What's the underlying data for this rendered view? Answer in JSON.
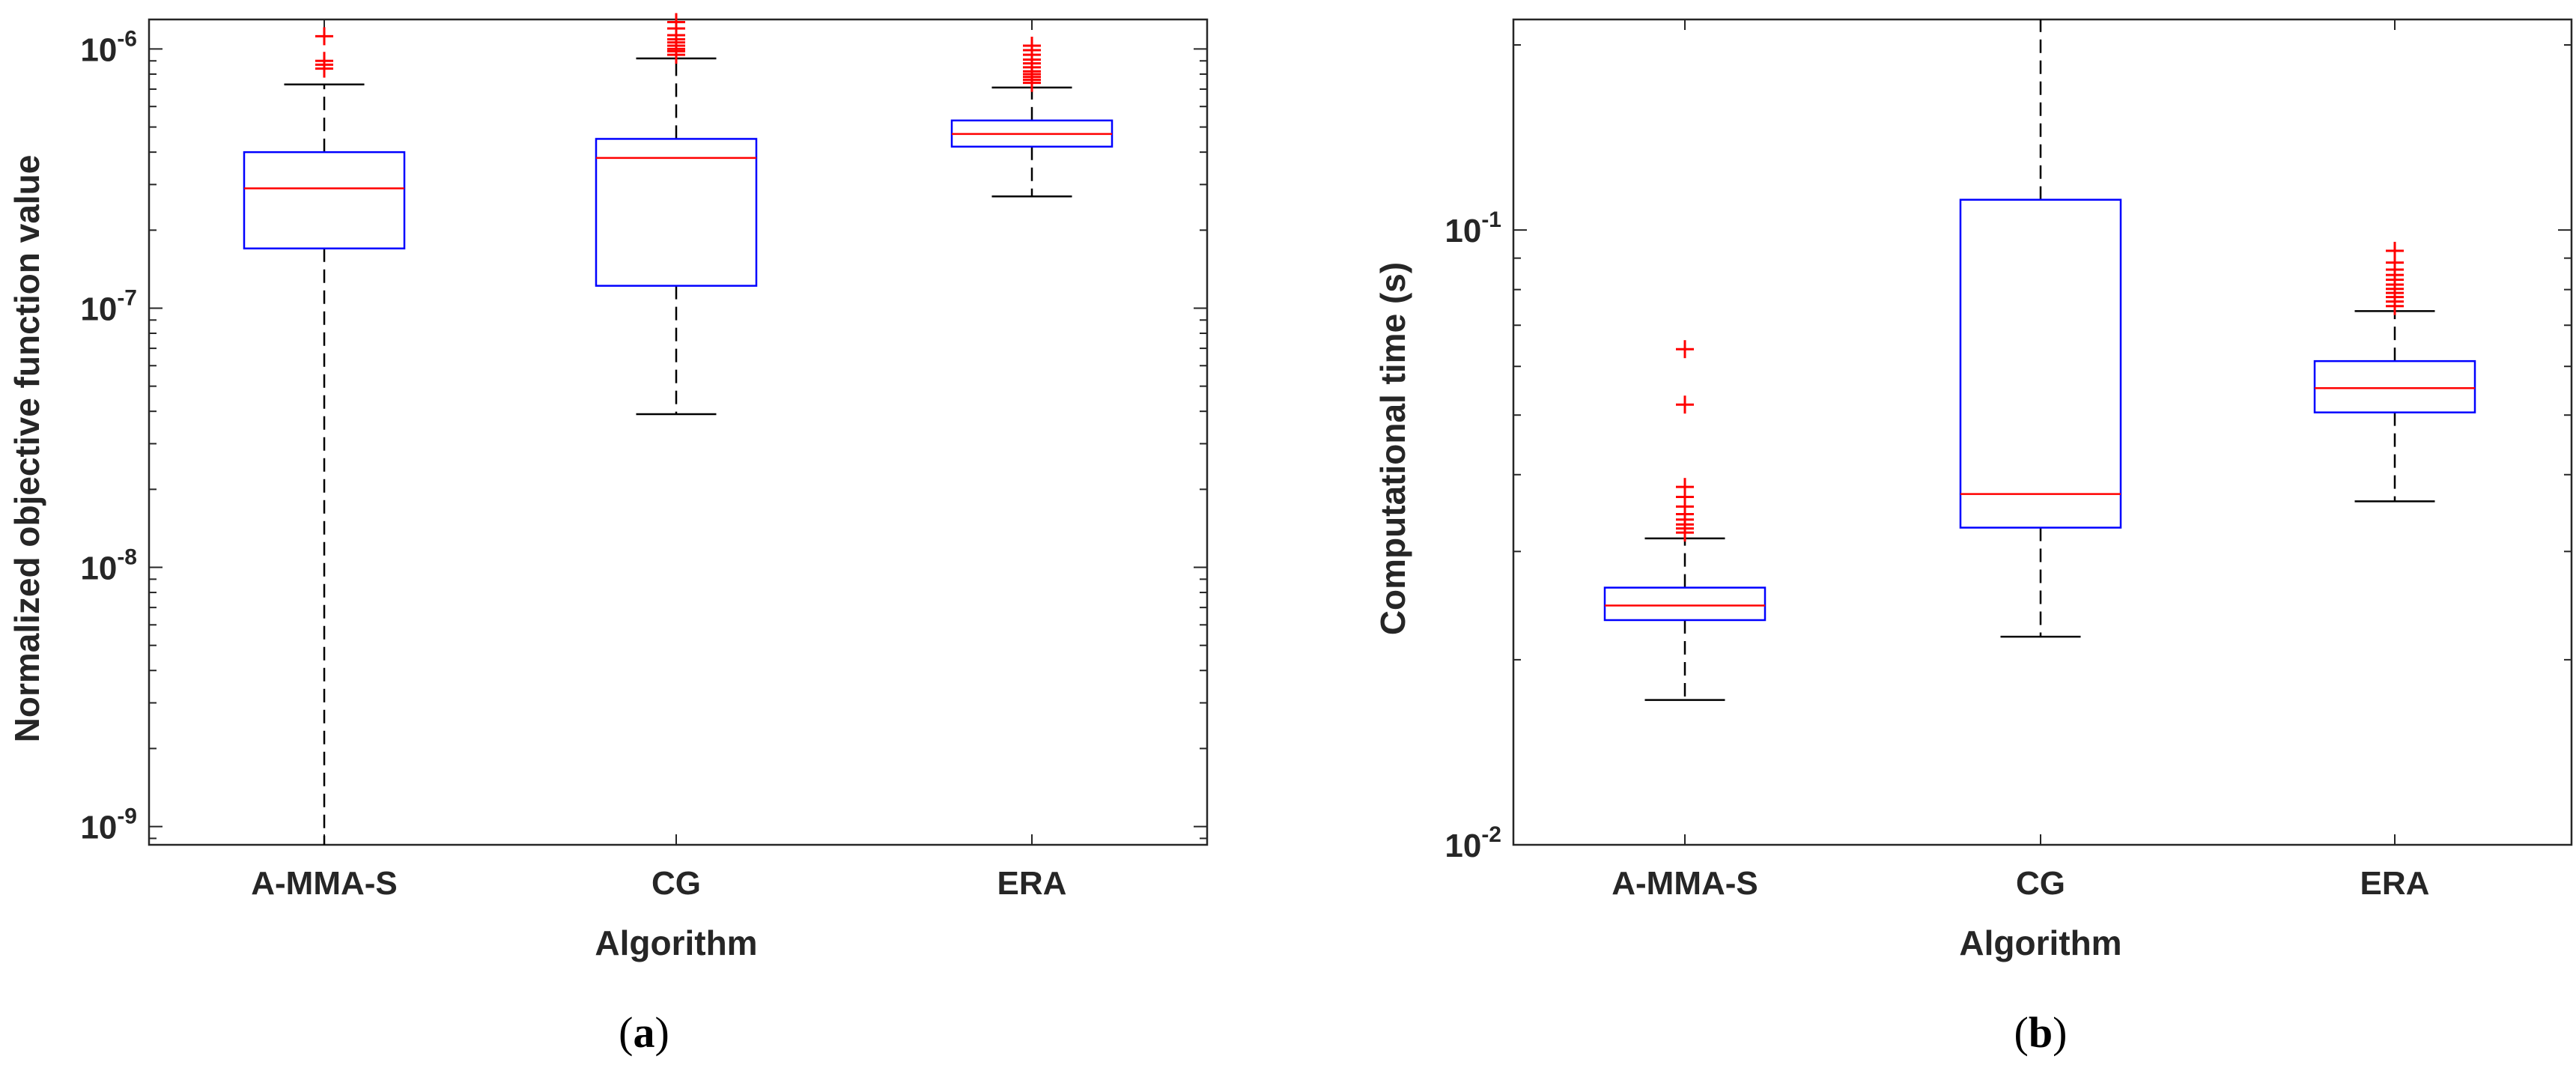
{
  "colors": {
    "box": "#0000ff",
    "median": "#ff0000",
    "whisker": "#000000",
    "outlier": "#ff0000",
    "axis": "#262626"
  },
  "chart_data": [
    {
      "type": "boxplot",
      "panel_label": "(a)",
      "caption": {
        "open": "(",
        "letter": "a",
        "close": ")"
      },
      "xlabel": "Algorithm",
      "ylabel": "Normalized objective function value",
      "yscale": "log",
      "ylim": [
        8.5e-10,
        1.3e-06
      ],
      "ytick_labels": [
        {
          "value": 1e-09,
          "base": "10",
          "exp": "-9"
        },
        {
          "value": 1e-08,
          "base": "10",
          "exp": "-8"
        },
        {
          "value": 1e-07,
          "base": "10",
          "exp": "-7"
        },
        {
          "value": 1e-06,
          "base": "10",
          "exp": "-6"
        }
      ],
      "categories": [
        "A-MMA-S",
        "CG",
        "ERA"
      ],
      "boxes": [
        {
          "name": "A-MMA-S",
          "whisker_low": 8.5e-10,
          "q1": 1.7e-07,
          "median": 2.9e-07,
          "q3": 4e-07,
          "whisker_high": 7.3e-07,
          "outliers": [
            8.4e-07,
            8.7e-07,
            9e-07,
            1.12e-06
          ]
        },
        {
          "name": "CG",
          "whisker_low": 3.9e-08,
          "q1": 1.22e-07,
          "median": 3.8e-07,
          "q3": 4.5e-07,
          "whisker_high": 9.2e-07,
          "outliers": [
            9.5e-07,
            9.8e-07,
            1e-06,
            1.03e-06,
            1.06e-06,
            1.09e-06,
            1.13e-06,
            1.2e-06,
            1.27e-06
          ]
        },
        {
          "name": "ERA",
          "whisker_low": 2.7e-07,
          "q1": 4.2e-07,
          "median": 4.7e-07,
          "q3": 5.3e-07,
          "whisker_high": 7.1e-07,
          "outliers": [
            7.4e-07,
            7.6e-07,
            7.8e-07,
            8e-07,
            8.2e-07,
            8.5e-07,
            8.8e-07,
            9.1e-07,
            9.5e-07,
            9.9e-07,
            1.03e-06
          ]
        }
      ]
    },
    {
      "type": "boxplot",
      "panel_label": "(b)",
      "caption": {
        "open": "(",
        "letter": "b",
        "close": ")"
      },
      "xlabel": "Algorithm",
      "ylabel": "Computational time (s)",
      "yscale": "log",
      "ylim": [
        0.01,
        0.22
      ],
      "ytick_labels": [
        {
          "value": 0.01,
          "base": "10",
          "exp": "-2"
        },
        {
          "value": 0.1,
          "base": "10",
          "exp": "-1"
        }
      ],
      "categories": [
        "A-MMA-S",
        "CG",
        "ERA"
      ],
      "boxes": [
        {
          "name": "A-MMA-S",
          "whisker_low": 0.0172,
          "q1": 0.0232,
          "median": 0.0245,
          "q3": 0.0262,
          "whisker_high": 0.0315,
          "outliers": [
            0.0322,
            0.0327,
            0.0332,
            0.0338,
            0.0345,
            0.0355,
            0.0368,
            0.0382,
            0.052,
            0.064
          ]
        },
        {
          "name": "CG",
          "whisker_low": 0.0218,
          "q1": 0.0328,
          "median": 0.0372,
          "q3": 0.112,
          "whisker_high": 0.22,
          "outliers": []
        },
        {
          "name": "ERA",
          "whisker_low": 0.0362,
          "q1": 0.0505,
          "median": 0.0553,
          "q3": 0.0612,
          "whisker_high": 0.0738,
          "outliers": [
            0.0752,
            0.0765,
            0.0778,
            0.079,
            0.0802,
            0.0815,
            0.083,
            0.0845,
            0.0862,
            0.0885,
            0.0925
          ]
        }
      ]
    }
  ]
}
